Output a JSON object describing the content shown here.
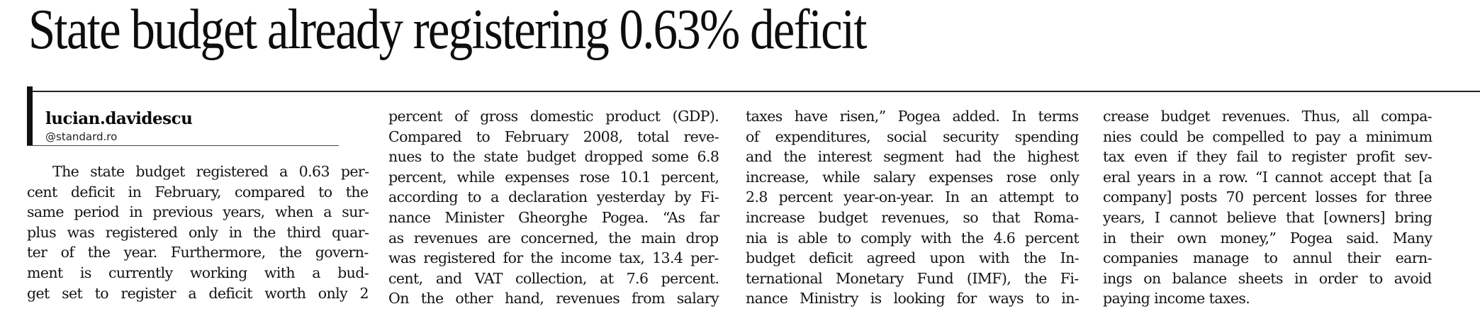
{
  "article": {
    "headline": "State budget already registering 0.63% deficit",
    "byline": {
      "name": "lucian.davidescu",
      "email": "@standard.ro"
    },
    "columns": [
      {
        "lines": [
          "The state budget registered a 0.63 per-",
          "cent deficit in February, compared to the",
          "same period in previous years, when a sur-",
          "plus was registered only in the third quar-",
          "ter of the year. Furthermore, the govern-",
          "ment is currently working with a bud-",
          "get set to register a deficit worth only 2"
        ]
      },
      {
        "lines": [
          "percent of gross domestic product (GDP).",
          "Compared to February 2008, total reve-",
          "nues to the state budget dropped some 6.8",
          "percent, while expenses rose 10.1 percent,",
          "according to a declaration yesterday by Fi-",
          "nance Minister Gheorghe Pogea. “As far",
          "as revenues are concerned, the main drop",
          "was registered for the income tax, 13.4 per-",
          "cent, and VAT collection, at 7.6 percent.",
          "On the other hand, revenues from salary"
        ]
      },
      {
        "lines": [
          "taxes have risen,” Pogea added. In terms",
          "of expenditures, social security spending",
          "and the interest segment had the highest",
          "increase, while salary expenses rose only",
          "2.8 percent year-on-year. In an attempt to",
          "increase budget revenues, so that Roma-",
          "nia is able to comply with the 4.6 percent",
          "budget deficit agreed upon with the In-",
          "ternational Monetary Fund (IMF), the Fi-",
          "nance Ministry is looking for ways to in-"
        ]
      },
      {
        "lines": [
          "crease budget revenues. Thus, all compa-",
          "nies could be compelled to pay a minimum",
          "tax even if they fail to register profit sev-",
          "eral years in a row. “I cannot accept that [a",
          "company] posts 70 percent losses for three",
          "years, I cannot believe that [owners] bring",
          "in their own money,” Pogea said. Many",
          "companies manage to annul their earn-",
          "ings on balance sheets in order to avoid",
          "paying income taxes."
        ]
      }
    ]
  }
}
